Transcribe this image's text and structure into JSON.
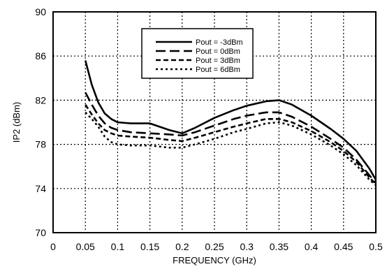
{
  "chart_data": {
    "type": "line",
    "xlabel": "FREQUENCY (GHz)",
    "ylabel": "IP2  (dBm)",
    "xlim": [
      0,
      0.5
    ],
    "ylim": [
      70,
      90
    ],
    "x_ticks": [
      "0",
      "0.05",
      "0.1",
      "0.15",
      "0.2",
      "0.25",
      "0.3",
      "0.35",
      "0.4",
      "0.45",
      "0.5"
    ],
    "y_ticks": [
      "70",
      "74",
      "78",
      "82",
      "86",
      "90"
    ],
    "grid": true,
    "legend_position": "top-center",
    "series": [
      {
        "name": "Pout = -3dBm",
        "style": "solid",
        "x": [
          0.05,
          0.06,
          0.07,
          0.08,
          0.09,
          0.1,
          0.12,
          0.15,
          0.18,
          0.2,
          0.22,
          0.25,
          0.28,
          0.3,
          0.33,
          0.35,
          0.37,
          0.4,
          0.43,
          0.45,
          0.47,
          0.49,
          0.5
        ],
        "y": [
          85.6,
          83.4,
          81.8,
          80.8,
          80.3,
          80.0,
          79.9,
          79.9,
          79.3,
          79.0,
          79.5,
          80.4,
          81.1,
          81.5,
          81.9,
          82.0,
          81.6,
          80.6,
          79.4,
          78.5,
          77.4,
          75.8,
          74.8
        ]
      },
      {
        "name": "Pout = 0dBm",
        "style": "long-dash",
        "x": [
          0.05,
          0.06,
          0.07,
          0.08,
          0.09,
          0.1,
          0.12,
          0.15,
          0.18,
          0.2,
          0.22,
          0.25,
          0.28,
          0.3,
          0.33,
          0.35,
          0.37,
          0.4,
          0.43,
          0.45,
          0.47,
          0.49,
          0.5
        ],
        "y": [
          82.7,
          81.6,
          80.6,
          79.9,
          79.5,
          79.3,
          79.1,
          79.0,
          78.9,
          78.8,
          79.1,
          79.7,
          80.3,
          80.6,
          80.9,
          80.9,
          80.5,
          79.6,
          78.5,
          77.7,
          76.6,
          75.2,
          74.5
        ]
      },
      {
        "name": "Pout = 3dBm",
        "style": "short-dash",
        "x": [
          0.05,
          0.06,
          0.07,
          0.08,
          0.09,
          0.1,
          0.12,
          0.15,
          0.18,
          0.2,
          0.22,
          0.25,
          0.28,
          0.3,
          0.33,
          0.35,
          0.37,
          0.4,
          0.43,
          0.45,
          0.47,
          0.49,
          0.5
        ],
        "y": [
          81.6,
          80.7,
          79.9,
          79.3,
          79.0,
          78.8,
          78.7,
          78.6,
          78.4,
          78.3,
          78.6,
          79.1,
          79.6,
          79.9,
          80.3,
          80.3,
          80.0,
          79.2,
          78.2,
          77.4,
          76.4,
          75.0,
          74.4
        ]
      },
      {
        "name": "Pout = 6dBm",
        "style": "dotted",
        "x": [
          0.05,
          0.06,
          0.07,
          0.08,
          0.09,
          0.1,
          0.12,
          0.15,
          0.18,
          0.2,
          0.22,
          0.25,
          0.28,
          0.3,
          0.33,
          0.35,
          0.37,
          0.4,
          0.43,
          0.45,
          0.47,
          0.49,
          0.5
        ],
        "y": [
          80.9,
          80.3,
          79.6,
          78.7,
          78.2,
          78.0,
          77.9,
          77.9,
          77.7,
          77.7,
          78.0,
          78.5,
          79.1,
          79.4,
          79.9,
          80.0,
          79.7,
          78.9,
          77.9,
          77.1,
          76.1,
          74.8,
          74.3
        ]
      }
    ]
  }
}
